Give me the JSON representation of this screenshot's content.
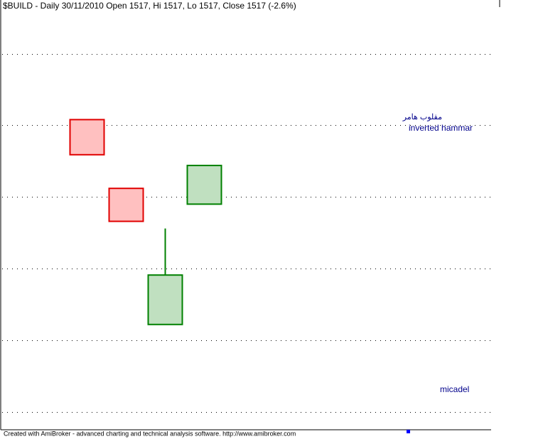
{
  "chart_data": {
    "type": "candlestick",
    "title": "$BUILD - Daily 30/11/2010 Open 1517, Hi 1517, Lo 1517, Close 1517 (-2.6%)",
    "categories": [
      null,
      null,
      null,
      null
    ],
    "series": [
      {
        "name": "open",
        "values": [
          40.8,
          31.2,
          12.2,
          29.0
        ]
      },
      {
        "name": "high",
        "values": [
          40.8,
          31.2,
          25.6,
          34.4
        ]
      },
      {
        "name": "low",
        "values": [
          35.9,
          26.6,
          12.2,
          29.0
        ]
      },
      {
        "name": "close",
        "values": [
          35.9,
          26.6,
          19.1,
          34.4
        ]
      }
    ],
    "up_color": "#008000",
    "up_fill": "#c0e0c0",
    "down_color": "#e00000",
    "down_fill": "#ffc0c0",
    "ylim": [
      -2.5,
      57.5
    ],
    "yticks": [
      0,
      10,
      20,
      30,
      40,
      50
    ],
    "grid": true,
    "annotations": [
      "مقلوب هامر",
      "inverted hammar",
      "micadel"
    ],
    "footer": "Created with AmiBroker - advanced charting and technical analysis software. http://www.amibroker.com"
  }
}
